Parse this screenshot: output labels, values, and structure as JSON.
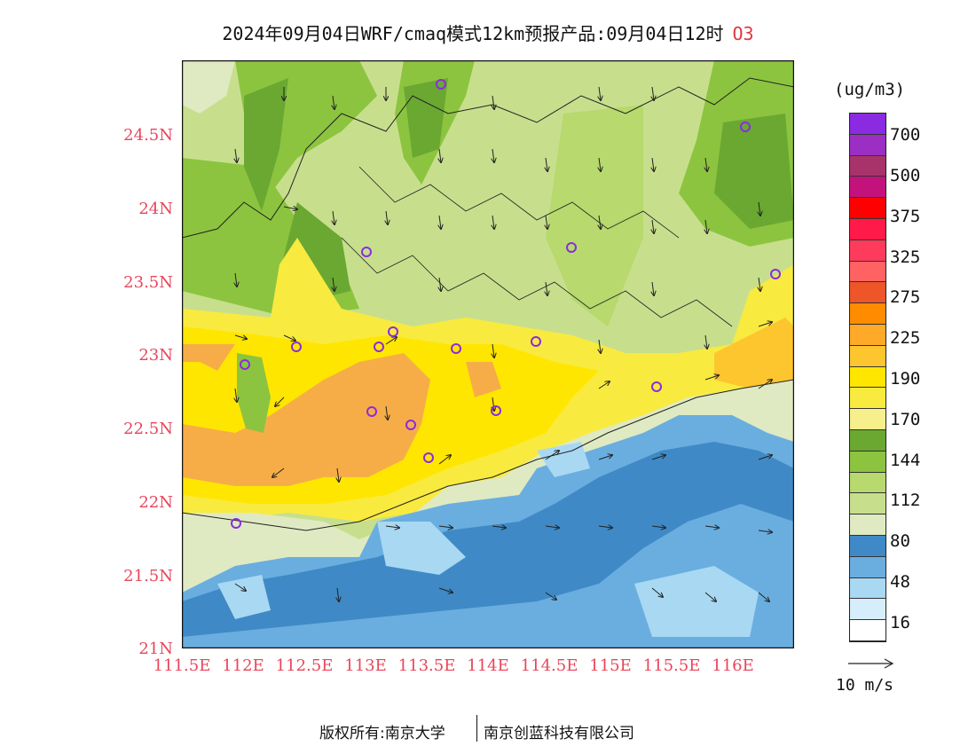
{
  "title": {
    "main": "2024年09月04日WRF/cmaq模式12km预报产品:09月04日12时",
    "species": "O3"
  },
  "map": {
    "lat_labels": [
      "24.5N",
      "24N",
      "23.5N",
      "23N",
      "22.5N",
      "22N",
      "21.5N",
      "21N"
    ],
    "lon_labels": [
      "111.5E",
      "112E",
      "112.5E",
      "113E",
      "113.5E",
      "114E",
      "114.5E",
      "115E",
      "115.5E",
      "116E"
    ],
    "lat_range": [
      21,
      25
    ],
    "lon_range": [
      111.5,
      116.5
    ],
    "marker_color": "#8a2be2"
  },
  "legend": {
    "unit": "(ug/m3)",
    "tick_labels": [
      "700",
      "500",
      "375",
      "325",
      "275",
      "225",
      "190",
      "170",
      "144",
      "112",
      "80",
      "48",
      "16"
    ],
    "colors": [
      "#8a2be2",
      "#9b2fc4",
      "#a8336a",
      "#c4127c",
      "#ff0000",
      "#ff1a4a",
      "#ff3b5c",
      "#ff6262",
      "#ee5528",
      "#ff8c00",
      "#ffa928",
      "#fdc52e",
      "#ffe600",
      "#f9ea3f",
      "#f7ee8c",
      "#6aa832",
      "#8cc43f",
      "#b7d96d",
      "#c7df8d",
      "#dfeac2",
      "#3f8ac6",
      "#6aaee0",
      "#a9d8f3",
      "#d6eefb",
      "#ffffff"
    ]
  },
  "reference_vector": {
    "label": "10 m/s"
  },
  "credits": {
    "left": "版权所有:南京大学",
    "right": "南京创蓝科技有限公司"
  }
}
